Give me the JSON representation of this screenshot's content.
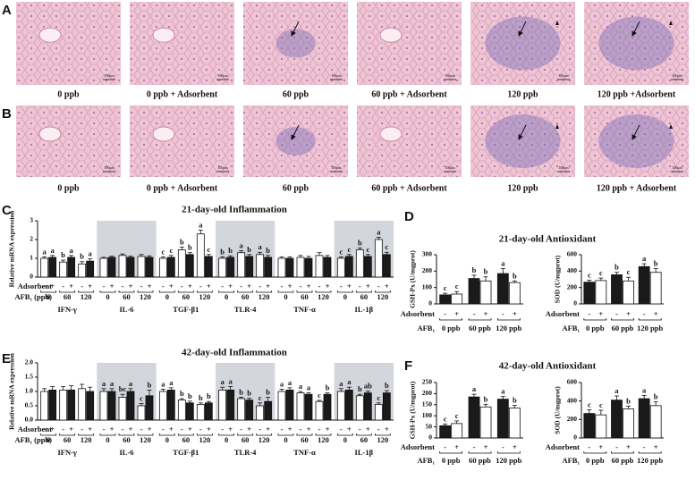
{
  "figure": {
    "rows": [
      {
        "label": "A",
        "captions": [
          "0 ppb",
          "0 ppb + Adsorbent",
          "60 ppb",
          "60 ppb + Adsorbent",
          "120 ppb",
          "120 ppb +Adsorbent"
        ]
      },
      {
        "label": "B",
        "captions": [
          "0 ppb",
          "0 ppb + Adsorbent",
          "60 ppb",
          "60 ppb + Adsorbent",
          "120 ppb",
          "120 ppb + Adsorbent"
        ]
      }
    ],
    "scale_bar": "100μm"
  },
  "chart_data": [
    {
      "type": "bar",
      "panel": "C",
      "title": "21-day-old Inflammation",
      "ylabel": "Relative mRNA expression",
      "categories": [
        "IFN-γ",
        "IL-6",
        "TGF-β1",
        "TLR-4",
        "TNF-α",
        "IL-1β"
      ],
      "shade": [
        false,
        true,
        false,
        true,
        false,
        true
      ],
      "adsorbent_label": "Adsorbent",
      "adsorbent": [
        "-",
        "+"
      ],
      "afb1_label": "AFB₁ (ppb)",
      "afb1_levels": [
        "0",
        "60",
        "120"
      ],
      "series": [
        {
          "color": "#ffffff",
          "values": [
            1.0,
            1.0,
            1.0,
            1.0,
            1.0,
            1.0
          ],
          "errors": [
            0.08,
            0.05,
            0.08,
            0.08,
            0.08,
            0.08
          ],
          "letters": [
            "a",
            null,
            "c",
            "b",
            null,
            "c"
          ]
        },
        {
          "color": "#1a1a1a",
          "values": [
            1.05,
            1.05,
            1.05,
            1.05,
            1.0,
            1.1
          ],
          "errors": [
            0.1,
            0.06,
            0.1,
            0.08,
            0.08,
            0.1
          ],
          "letters": [
            "a",
            null,
            "c",
            "b",
            null,
            "c"
          ]
        },
        {
          "color": "#ffffff",
          "values": [
            0.8,
            1.15,
            1.45,
            1.3,
            1.05,
            1.45
          ],
          "errors": [
            0.1,
            0.08,
            0.15,
            0.1,
            0.1,
            0.1
          ],
          "letters": [
            "b",
            null,
            "b",
            "a",
            null,
            "b"
          ]
        },
        {
          "color": "#1a1a1a",
          "values": [
            1.05,
            1.05,
            1.2,
            1.1,
            1.0,
            1.1
          ],
          "errors": [
            0.1,
            0.06,
            0.1,
            0.1,
            0.1,
            0.1
          ],
          "letters": [
            "a",
            null,
            "b",
            "b",
            null,
            "c"
          ]
        },
        {
          "color": "#ffffff",
          "values": [
            0.7,
            1.1,
            2.3,
            1.2,
            1.15,
            2.0
          ],
          "errors": [
            0.12,
            0.1,
            0.2,
            0.12,
            0.15,
            0.12
          ],
          "letters": [
            "b",
            null,
            "a",
            "a",
            null,
            "a"
          ]
        },
        {
          "color": "#1a1a1a",
          "values": [
            0.85,
            1.05,
            1.1,
            1.05,
            1.05,
            1.2
          ],
          "errors": [
            0.12,
            0.08,
            0.1,
            0.1,
            0.1,
            0.12
          ],
          "letters": [
            "a",
            null,
            "c",
            "b",
            null,
            "c"
          ]
        }
      ],
      "ylim": [
        0,
        3
      ],
      "yticks": [
        0,
        1,
        2,
        3
      ]
    },
    {
      "type": "bar",
      "panel": "D",
      "title": "21-day-old Antioxidant",
      "ylabel": "GSH-Px (U/mgprot)",
      "categories": [
        "0 ppb",
        "60 ppb",
        "120 ppb"
      ],
      "adsorbent_label": "Adsorbent",
      "adsorbent": [
        "-",
        "+"
      ],
      "afb1_label": "AFB₁",
      "series": [
        {
          "color": "#1a1a1a",
          "values": [
            55,
            155,
            185
          ],
          "errors": [
            10,
            20,
            30
          ],
          "letters": [
            "c",
            "b",
            "a"
          ]
        },
        {
          "color": "#ffffff",
          "values": [
            60,
            140,
            130
          ],
          "errors": [
            15,
            25,
            10
          ],
          "letters": [
            "c",
            "b",
            "b"
          ]
        }
      ],
      "ylim": [
        0,
        300
      ],
      "yticks": [
        0,
        100,
        200,
        300
      ]
    },
    {
      "type": "bar",
      "ylabel": "SOD (U/mgprot)",
      "categories": [
        "0 ppb",
        "60 ppb",
        "120 ppb"
      ],
      "adsorbent_label": "Adsorbent",
      "adsorbent": [
        "-",
        "+"
      ],
      "afb1_label": "AFB₁",
      "series": [
        {
          "color": "#1a1a1a",
          "values": [
            265,
            355,
            455
          ],
          "errors": [
            25,
            30,
            35
          ],
          "letters": [
            "c",
            "b",
            "a"
          ]
        },
        {
          "color": "#ffffff",
          "values": [
            285,
            280,
            385
          ],
          "errors": [
            30,
            45,
            45
          ],
          "letters": [
            "c",
            "c",
            "b"
          ]
        }
      ],
      "ylim": [
        0,
        600
      ],
      "yticks": [
        0,
        200,
        400,
        600
      ]
    },
    {
      "type": "bar",
      "panel": "E",
      "title": "42-day-old Inflammation",
      "ylabel": "Relative mRNA expression",
      "categories": [
        "IFN-γ",
        "IL-6",
        "TGF-β1",
        "TLR-4",
        "TNF-α",
        "IL-1β"
      ],
      "shade": [
        false,
        true,
        false,
        true,
        false,
        true
      ],
      "adsorbent_label": "Adsorbent",
      "adsorbent": [
        "-",
        "+"
      ],
      "afb1_label": "AFB₁ (ppb)",
      "afb1_levels": [
        "0",
        "60",
        "120"
      ],
      "series": [
        {
          "color": "#ffffff",
          "values": [
            1.0,
            1.0,
            1.0,
            1.05,
            1.0,
            1.0
          ],
          "errors": [
            0.1,
            0.1,
            0.08,
            0.1,
            0.08,
            0.1
          ],
          "letters": [
            null,
            "a",
            "a",
            "a",
            "a",
            "a"
          ]
        },
        {
          "color": "#1a1a1a",
          "values": [
            1.05,
            1.0,
            1.05,
            1.05,
            1.05,
            1.05
          ],
          "errors": [
            0.12,
            0.1,
            0.08,
            0.12,
            0.08,
            0.1
          ],
          "letters": [
            null,
            "a",
            "a",
            "a",
            "a",
            "a"
          ]
        },
        {
          "color": "#ffffff",
          "values": [
            1.05,
            0.8,
            0.7,
            0.75,
            0.95,
            0.85
          ],
          "errors": [
            0.12,
            0.1,
            0.05,
            0.05,
            0.05,
            0.05
          ],
          "letters": [
            null,
            "bc",
            "b",
            "b",
            "a",
            "b"
          ]
        },
        {
          "color": "#1a1a1a",
          "values": [
            1.05,
            1.0,
            0.6,
            0.7,
            0.9,
            0.95
          ],
          "errors": [
            0.15,
            0.1,
            0.06,
            0.06,
            0.05,
            0.06
          ],
          "letters": [
            null,
            "a",
            "b",
            "b",
            "a",
            "ab"
          ]
        },
        {
          "color": "#ffffff",
          "values": [
            1.1,
            0.5,
            0.55,
            0.5,
            0.65,
            0.55
          ],
          "errors": [
            0.15,
            0.08,
            0.05,
            0.1,
            0.04,
            0.05
          ],
          "letters": [
            null,
            "c",
            "b",
            "c",
            "c",
            "c"
          ]
        },
        {
          "color": "#1a1a1a",
          "values": [
            1.0,
            0.85,
            0.6,
            0.65,
            0.9,
            0.95
          ],
          "errors": [
            0.15,
            0.2,
            0.05,
            0.15,
            0.05,
            0.08
          ],
          "letters": [
            null,
            "b",
            "b",
            "b",
            "b",
            "b"
          ]
        }
      ],
      "ylim": [
        0,
        2
      ],
      "yticks": [
        {
          "value": 0,
          "label": "0.0"
        },
        0.5,
        {
          "value": 1,
          "label": "1.0"
        },
        1.5,
        {
          "value": 2,
          "label": "2.0"
        }
      ]
    },
    {
      "type": "bar",
      "panel": "F",
      "title": "42-day-old Antioxidant",
      "ylabel": "GSH-Px (U/mgprot)",
      "categories": [
        "0 ppb",
        "60 ppb",
        "120 ppb"
      ],
      "adsorbent_label": "Adsorbent",
      "adsorbent": [
        "-",
        "+"
      ],
      "afb1_label": "AFB₁",
      "series": [
        {
          "color": "#1a1a1a",
          "values": [
            55,
            185,
            175
          ],
          "errors": [
            8,
            12,
            12
          ],
          "letters": [
            "c",
            "a",
            "a"
          ]
        },
        {
          "color": "#ffffff",
          "values": [
            65,
            140,
            135
          ],
          "errors": [
            12,
            12,
            12
          ],
          "letters": [
            "c",
            "b",
            "b"
          ]
        }
      ],
      "ylim": [
        0,
        250
      ],
      "yticks": [
        0,
        50,
        100,
        150,
        200,
        250
      ]
    },
    {
      "type": "bar",
      "ylabel": "SOD (U/mgprot)",
      "categories": [
        "0 ppb",
        "60 ppb",
        "120 ppb"
      ],
      "adsorbent_label": "Adsorbent",
      "adsorbent": [
        "-",
        "+"
      ],
      "afb1_label": "AFB₁",
      "series": [
        {
          "color": "#1a1a1a",
          "values": [
            265,
            410,
            425
          ],
          "errors": [
            40,
            45,
            35
          ],
          "letters": [
            "c",
            "a",
            "a"
          ]
        },
        {
          "color": "#ffffff",
          "values": [
            250,
            315,
            350
          ],
          "errors": [
            50,
            30,
            40
          ],
          "letters": [
            "c",
            "b",
            "b"
          ]
        }
      ],
      "ylim": [
        0,
        600
      ],
      "yticks": [
        0,
        200,
        400,
        600
      ]
    }
  ]
}
